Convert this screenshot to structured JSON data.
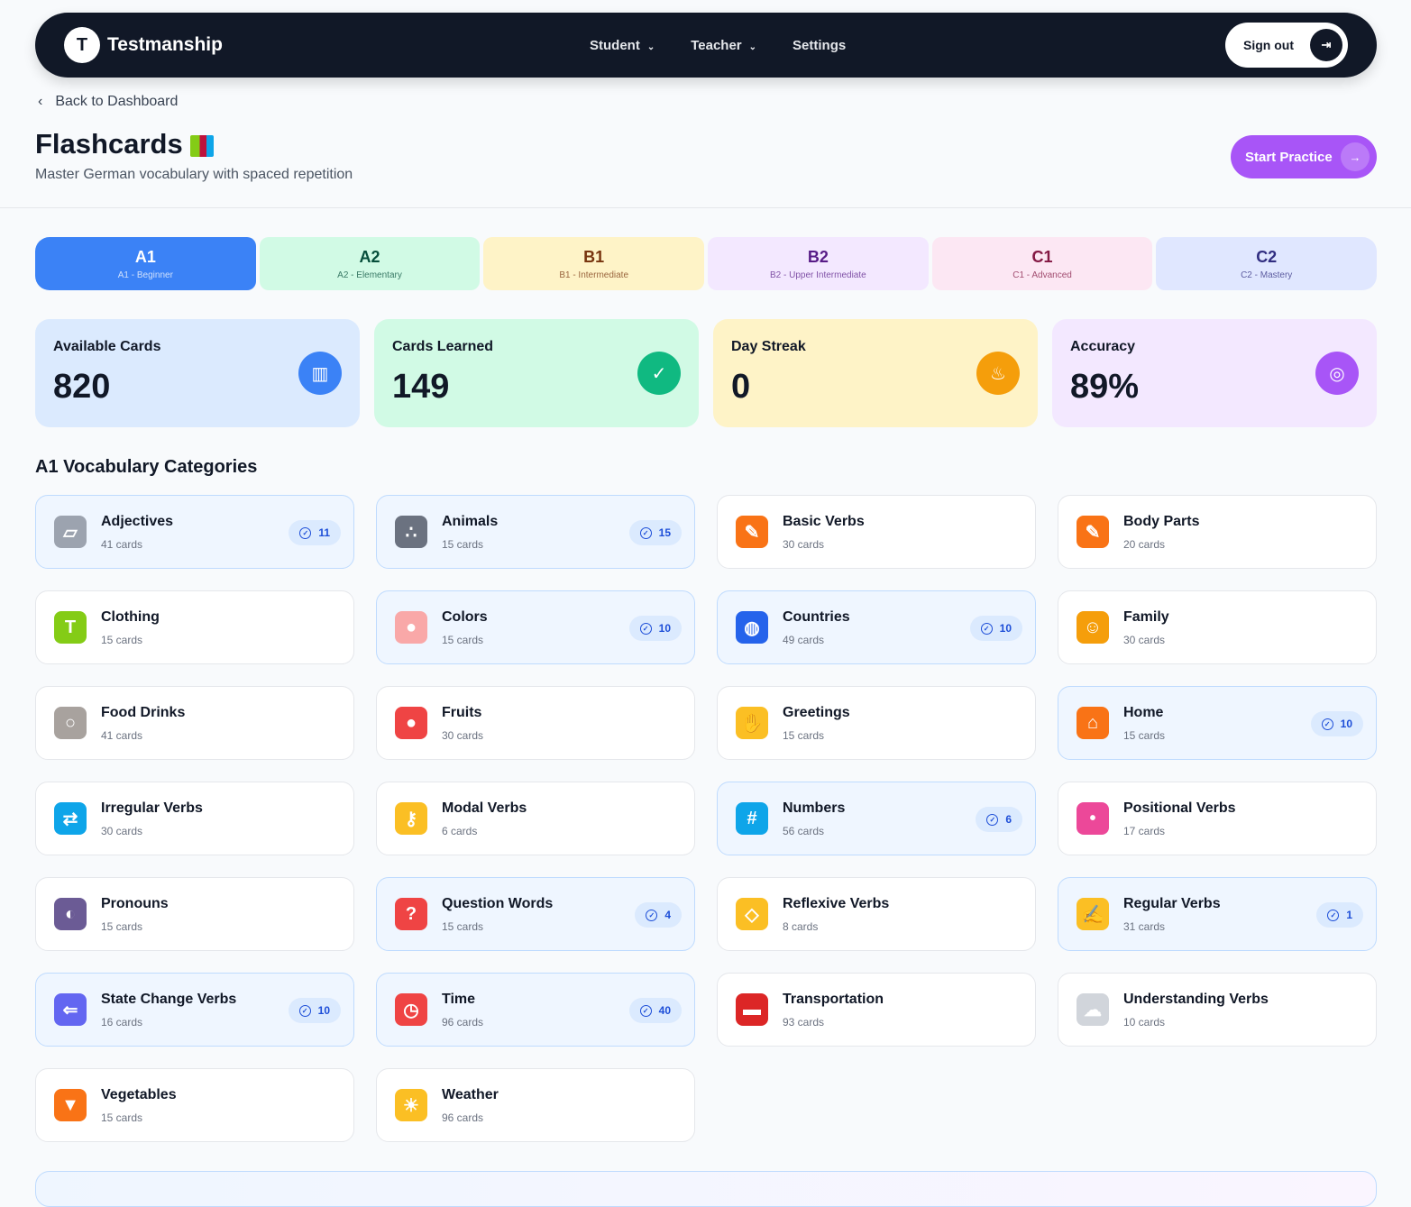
{
  "nav": {
    "logo_letter": "T",
    "brand": "Testmanship",
    "items": [
      "Student",
      "Teacher",
      "Settings"
    ],
    "sign_out": "Sign out"
  },
  "header": {
    "back": "Back to Dashboard",
    "title": "Flashcards",
    "subtitle": "Master German vocabulary with spaced repetition",
    "start": "Start Practice"
  },
  "levels": [
    {
      "code": "A1",
      "name": "A1 - Beginner",
      "bg": "#3b82f6",
      "fg": "#ffffff"
    },
    {
      "code": "A2",
      "name": "A2 - Elementary",
      "bg": "#d1fae5",
      "fg": "#064e3b"
    },
    {
      "code": "B1",
      "name": "B1 - Intermediate",
      "bg": "#fef3c7",
      "fg": "#78350f"
    },
    {
      "code": "B2",
      "name": "B2 - Upper Intermediate",
      "bg": "#f3e8ff",
      "fg": "#581c87"
    },
    {
      "code": "C1",
      "name": "C1 - Advanced",
      "bg": "#fce7f3",
      "fg": "#831843"
    },
    {
      "code": "C2",
      "name": "C2 - Mastery",
      "bg": "#e0e7ff",
      "fg": "#312e81"
    }
  ],
  "stats": [
    {
      "label": "Available Cards",
      "value": "820",
      "bg": "#dbeafe",
      "icon_bg": "#3b82f6",
      "icon": "books-icon",
      "glyph": "▥"
    },
    {
      "label": "Cards Learned",
      "value": "149",
      "bg": "#d1fae5",
      "icon_bg": "#10b981",
      "icon": "check-icon",
      "glyph": "✓"
    },
    {
      "label": "Day Streak",
      "value": "0",
      "bg": "#fef3c7",
      "icon_bg": "#f59e0b",
      "icon": "fire-icon",
      "glyph": "♨"
    },
    {
      "label": "Accuracy",
      "value": "89%",
      "bg": "#f3e8ff",
      "icon_bg": "#a855f7",
      "icon": "target-icon",
      "glyph": "◎"
    }
  ],
  "section_title": "A1 Vocabulary Categories",
  "categories": [
    {
      "name": "Adjectives",
      "cards": "41 cards",
      "learned": "11",
      "color": "#9ca3af",
      "glyph": "▱"
    },
    {
      "name": "Animals",
      "cards": "15 cards",
      "learned": "15",
      "color": "#6b7280",
      "glyph": "∴"
    },
    {
      "name": "Basic Verbs",
      "cards": "30 cards",
      "learned": null,
      "color": "#f97316",
      "glyph": "✎"
    },
    {
      "name": "Body Parts",
      "cards": "20 cards",
      "learned": null,
      "color": "#f97316",
      "glyph": "✎"
    },
    {
      "name": "Clothing",
      "cards": "15 cards",
      "learned": null,
      "color": "#84cc16",
      "glyph": "T"
    },
    {
      "name": "Colors",
      "cards": "15 cards",
      "learned": "10",
      "color": "#f9a8a8",
      "glyph": "●"
    },
    {
      "name": "Countries",
      "cards": "49 cards",
      "learned": "10",
      "color": "#2563eb",
      "glyph": "◍"
    },
    {
      "name": "Family",
      "cards": "30 cards",
      "learned": null,
      "color": "#f59e0b",
      "glyph": "☺"
    },
    {
      "name": "Food Drinks",
      "cards": "41 cards",
      "learned": null,
      "color": "#a8a29e",
      "glyph": "○"
    },
    {
      "name": "Fruits",
      "cards": "30 cards",
      "learned": null,
      "color": "#ef4444",
      "glyph": "●"
    },
    {
      "name": "Greetings",
      "cards": "15 cards",
      "learned": null,
      "color": "#fbbf24",
      "glyph": "✋"
    },
    {
      "name": "Home",
      "cards": "15 cards",
      "learned": "10",
      "color": "#f97316",
      "glyph": "⌂"
    },
    {
      "name": "Irregular Verbs",
      "cards": "30 cards",
      "learned": null,
      "color": "#0ea5e9",
      "glyph": "⇄"
    },
    {
      "name": "Modal Verbs",
      "cards": "6 cards",
      "learned": null,
      "color": "#fbbf24",
      "glyph": "⚷"
    },
    {
      "name": "Numbers",
      "cards": "56 cards",
      "learned": "6",
      "color": "#0ea5e9",
      "glyph": "#"
    },
    {
      "name": "Positional Verbs",
      "cards": "17 cards",
      "learned": null,
      "color": "#ec4899",
      "glyph": "•"
    },
    {
      "name": "Pronouns",
      "cards": "15 cards",
      "learned": null,
      "color": "#6b5b95",
      "glyph": "◐"
    },
    {
      "name": "Question Words",
      "cards": "15 cards",
      "learned": "4",
      "color": "#ef4444",
      "glyph": "?"
    },
    {
      "name": "Reflexive Verbs",
      "cards": "8 cards",
      "learned": null,
      "color": "#fbbf24",
      "glyph": "◇"
    },
    {
      "name": "Regular Verbs",
      "cards": "31 cards",
      "learned": "1",
      "color": "#fbbf24",
      "glyph": "✍"
    },
    {
      "name": "State Change Verbs",
      "cards": "16 cards",
      "learned": "10",
      "color": "#6366f1",
      "glyph": "⇐"
    },
    {
      "name": "Time",
      "cards": "96 cards",
      "learned": "40",
      "color": "#ef4444",
      "glyph": "◷"
    },
    {
      "name": "Transportation",
      "cards": "93 cards",
      "learned": null,
      "color": "#dc2626",
      "glyph": "▬"
    },
    {
      "name": "Understanding Verbs",
      "cards": "10 cards",
      "learned": null,
      "color": "#d1d5db",
      "glyph": "☁"
    },
    {
      "name": "Vegetables",
      "cards": "15 cards",
      "learned": null,
      "color": "#f97316",
      "glyph": "▼"
    },
    {
      "name": "Weather",
      "cards": "96 cards",
      "learned": null,
      "color": "#fbbf24",
      "glyph": "☀"
    }
  ]
}
